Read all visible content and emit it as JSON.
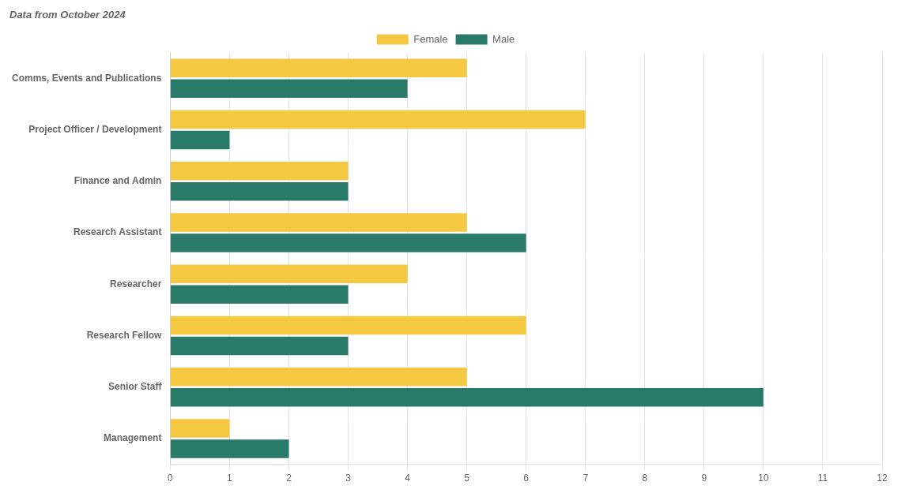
{
  "chart_data": {
    "type": "bar",
    "orientation": "horizontal",
    "subtitle": "Data from October 2024",
    "categories": [
      "Comms, Events and Publications",
      "Project Officer / Development",
      "Finance and Admin",
      "Research Assistant",
      "Researcher",
      "Research Fellow",
      "Senior Staff",
      "Management"
    ],
    "series": [
      {
        "name": "Female",
        "color": "#F5C842",
        "values": [
          5,
          7,
          3,
          5,
          4,
          6,
          5,
          1
        ]
      },
      {
        "name": "Male",
        "color": "#2A7A6A",
        "values": [
          4,
          1,
          3,
          6,
          3,
          3,
          10,
          2
        ]
      }
    ],
    "xlim": [
      0,
      12
    ],
    "xticks": [
      0,
      1,
      2,
      3,
      4,
      5,
      6,
      7,
      8,
      9,
      10,
      11,
      12
    ],
    "grid": true,
    "legend": "top"
  }
}
